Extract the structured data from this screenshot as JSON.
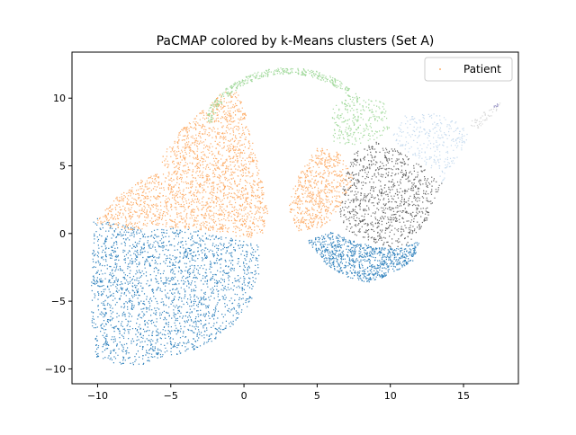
{
  "chart_data": {
    "type": "scatter",
    "title": "PaCMAP colored by k-Means clusters (Set A)",
    "xlabel": "",
    "ylabel": "",
    "xlim": [
      -11.75,
      18.75
    ],
    "ylim": [
      -11.1,
      13.4
    ],
    "xticks": [
      -10,
      -5,
      0,
      5,
      10,
      15
    ],
    "yticks": [
      -10,
      -5,
      0,
      5,
      10
    ],
    "xtick_labels": [
      "−10",
      "−5",
      "0",
      "5",
      "10",
      "15"
    ],
    "ytick_labels": [
      "−10",
      "−5",
      "0",
      "5",
      "10"
    ],
    "grid": false,
    "legend": {
      "position": "top-right",
      "entries": [
        "Patient"
      ]
    },
    "series": [
      {
        "name": "Patient",
        "color": "#fdae6b",
        "clusters": [
          {
            "color": "#3182bd",
            "regions": [
              {
                "type": "polygon",
                "weight": 5,
                "pts": [
                  [
                    -10.3,
                    1.2
                  ],
                  [
                    -7,
                    0.3
                  ],
                  [
                    -4,
                    0.5
                  ],
                  [
                    -1,
                    -0.3
                  ],
                  [
                    1,
                    -0.8
                  ],
                  [
                    1,
                    -3
                  ],
                  [
                    0.5,
                    -5
                  ],
                  [
                    -1,
                    -7
                  ],
                  [
                    -3,
                    -8.5
                  ],
                  [
                    -5,
                    -9
                  ],
                  [
                    -7,
                    -9.7
                  ],
                  [
                    -9,
                    -9.6
                  ],
                  [
                    -10.3,
                    -9.2
                  ],
                  [
                    -10.5,
                    -5
                  ],
                  [
                    -10.4,
                    -1
                  ]
                ]
              },
              {
                "type": "polygon",
                "weight": 2,
                "pts": [
                  [
                    4.3,
                    -0.5
                  ],
                  [
                    6,
                    0.2
                  ],
                  [
                    7.5,
                    -0.5
                  ],
                  [
                    9,
                    -1
                  ],
                  [
                    10.5,
                    -1
                  ],
                  [
                    12,
                    -0.5
                  ],
                  [
                    11.5,
                    -2
                  ],
                  [
                    10,
                    -3
                  ],
                  [
                    8.5,
                    -3.6
                  ],
                  [
                    7,
                    -3.2
                  ],
                  [
                    5.5,
                    -2.2
                  ]
                ]
              }
            ]
          },
          {
            "color": "#fdae6b",
            "regions": [
              {
                "type": "polygon",
                "weight": 5,
                "pts": [
                  [
                    -10.2,
                    0.8
                  ],
                  [
                    -9,
                    2.5
                  ],
                  [
                    -7.5,
                    3.8
                  ],
                  [
                    -6,
                    4.5
                  ],
                  [
                    -5.5,
                    6
                  ],
                  [
                    -4.5,
                    7.5
                  ],
                  [
                    -3,
                    9
                  ],
                  [
                    -1.5,
                    10.5
                  ],
                  [
                    -0.5,
                    10.5
                  ],
                  [
                    0,
                    9.5
                  ],
                  [
                    0.5,
                    7
                  ],
                  [
                    1.2,
                    4
                  ],
                  [
                    1.6,
                    1.5
                  ],
                  [
                    1.2,
                    -0.2
                  ],
                  [
                    0,
                    -0.3
                  ],
                  [
                    -2,
                    0.2
                  ],
                  [
                    -5,
                    0.5
                  ],
                  [
                    -8,
                    0.3
                  ]
                ]
              },
              {
                "type": "polygon",
                "weight": 1.5,
                "pts": [
                  [
                    3.5,
                    0.2
                  ],
                  [
                    3,
                    2
                  ],
                  [
                    3.5,
                    4
                  ],
                  [
                    5,
                    6.5
                  ],
                  [
                    6.5,
                    6
                  ],
                  [
                    7.5,
                    4
                  ],
                  [
                    6.5,
                    2
                  ],
                  [
                    5.5,
                    0.5
                  ]
                ]
              }
            ]
          },
          {
            "color": "#a1d99b",
            "regions": [
              {
                "type": "arc",
                "weight": 0.9,
                "cx": 3,
                "cy": 7,
                "rx": 6,
                "ry": 5.3,
                "a0": 165,
                "a1": 35,
                "thick": 0.5
              },
              {
                "type": "polygon",
                "weight": 0.6,
                "pts": [
                  [
                    6,
                    9.5
                  ],
                  [
                    7.5,
                    10.2
                  ],
                  [
                    9.5,
                    9.8
                  ],
                  [
                    10,
                    7.5
                  ],
                  [
                    8,
                    6.5
                  ],
                  [
                    6,
                    6.8
                  ]
                ]
              }
            ]
          },
          {
            "color": "#636363",
            "regions": [
              {
                "type": "polygon",
                "weight": 2.2,
                "pts": [
                  [
                    6.5,
                    1.5
                  ],
                  [
                    6.8,
                    4
                  ],
                  [
                    7.5,
                    6
                  ],
                  [
                    9,
                    6.8
                  ],
                  [
                    10,
                    6.5
                  ],
                  [
                    11.5,
                    5.5
                  ],
                  [
                    13.5,
                    3.8
                  ],
                  [
                    12.5,
                    1
                  ],
                  [
                    11,
                    -1
                  ],
                  [
                    10,
                    -1
                  ],
                  [
                    8.5,
                    -0.5
                  ],
                  [
                    7,
                    0.2
                  ]
                ]
              }
            ]
          },
          {
            "color": "#c6dbef",
            "regions": [
              {
                "type": "polygon",
                "weight": 0.7,
                "pts": [
                  [
                    10,
                    7
                  ],
                  [
                    11,
                    8.8
                  ],
                  [
                    13,
                    8.9
                  ],
                  [
                    14.5,
                    8.5
                  ],
                  [
                    15.5,
                    7.5
                  ],
                  [
                    14.5,
                    5.5
                  ],
                  [
                    13.5,
                    3.8
                  ],
                  [
                    12,
                    5.5
                  ],
                  [
                    10.5,
                    6.5
                  ]
                ]
              }
            ]
          },
          {
            "color": "#d9d9d9",
            "regions": [
              {
                "type": "polygon",
                "weight": 0.12,
                "pts": [
                  [
                    15,
                    8.2
                  ],
                  [
                    16,
                    8.8
                  ],
                  [
                    17.5,
                    9.7
                  ],
                  [
                    17.2,
                    9
                  ],
                  [
                    16,
                    7.8
                  ]
                ]
              }
            ]
          },
          {
            "color": "#9e9ac8",
            "regions": [
              {
                "type": "polygon",
                "weight": 0.02,
                "pts": [
                  [
                    16.8,
                    9.3
                  ],
                  [
                    17.5,
                    9.8
                  ],
                  [
                    17.3,
                    9.4
                  ]
                ]
              }
            ]
          }
        ]
      }
    ]
  }
}
